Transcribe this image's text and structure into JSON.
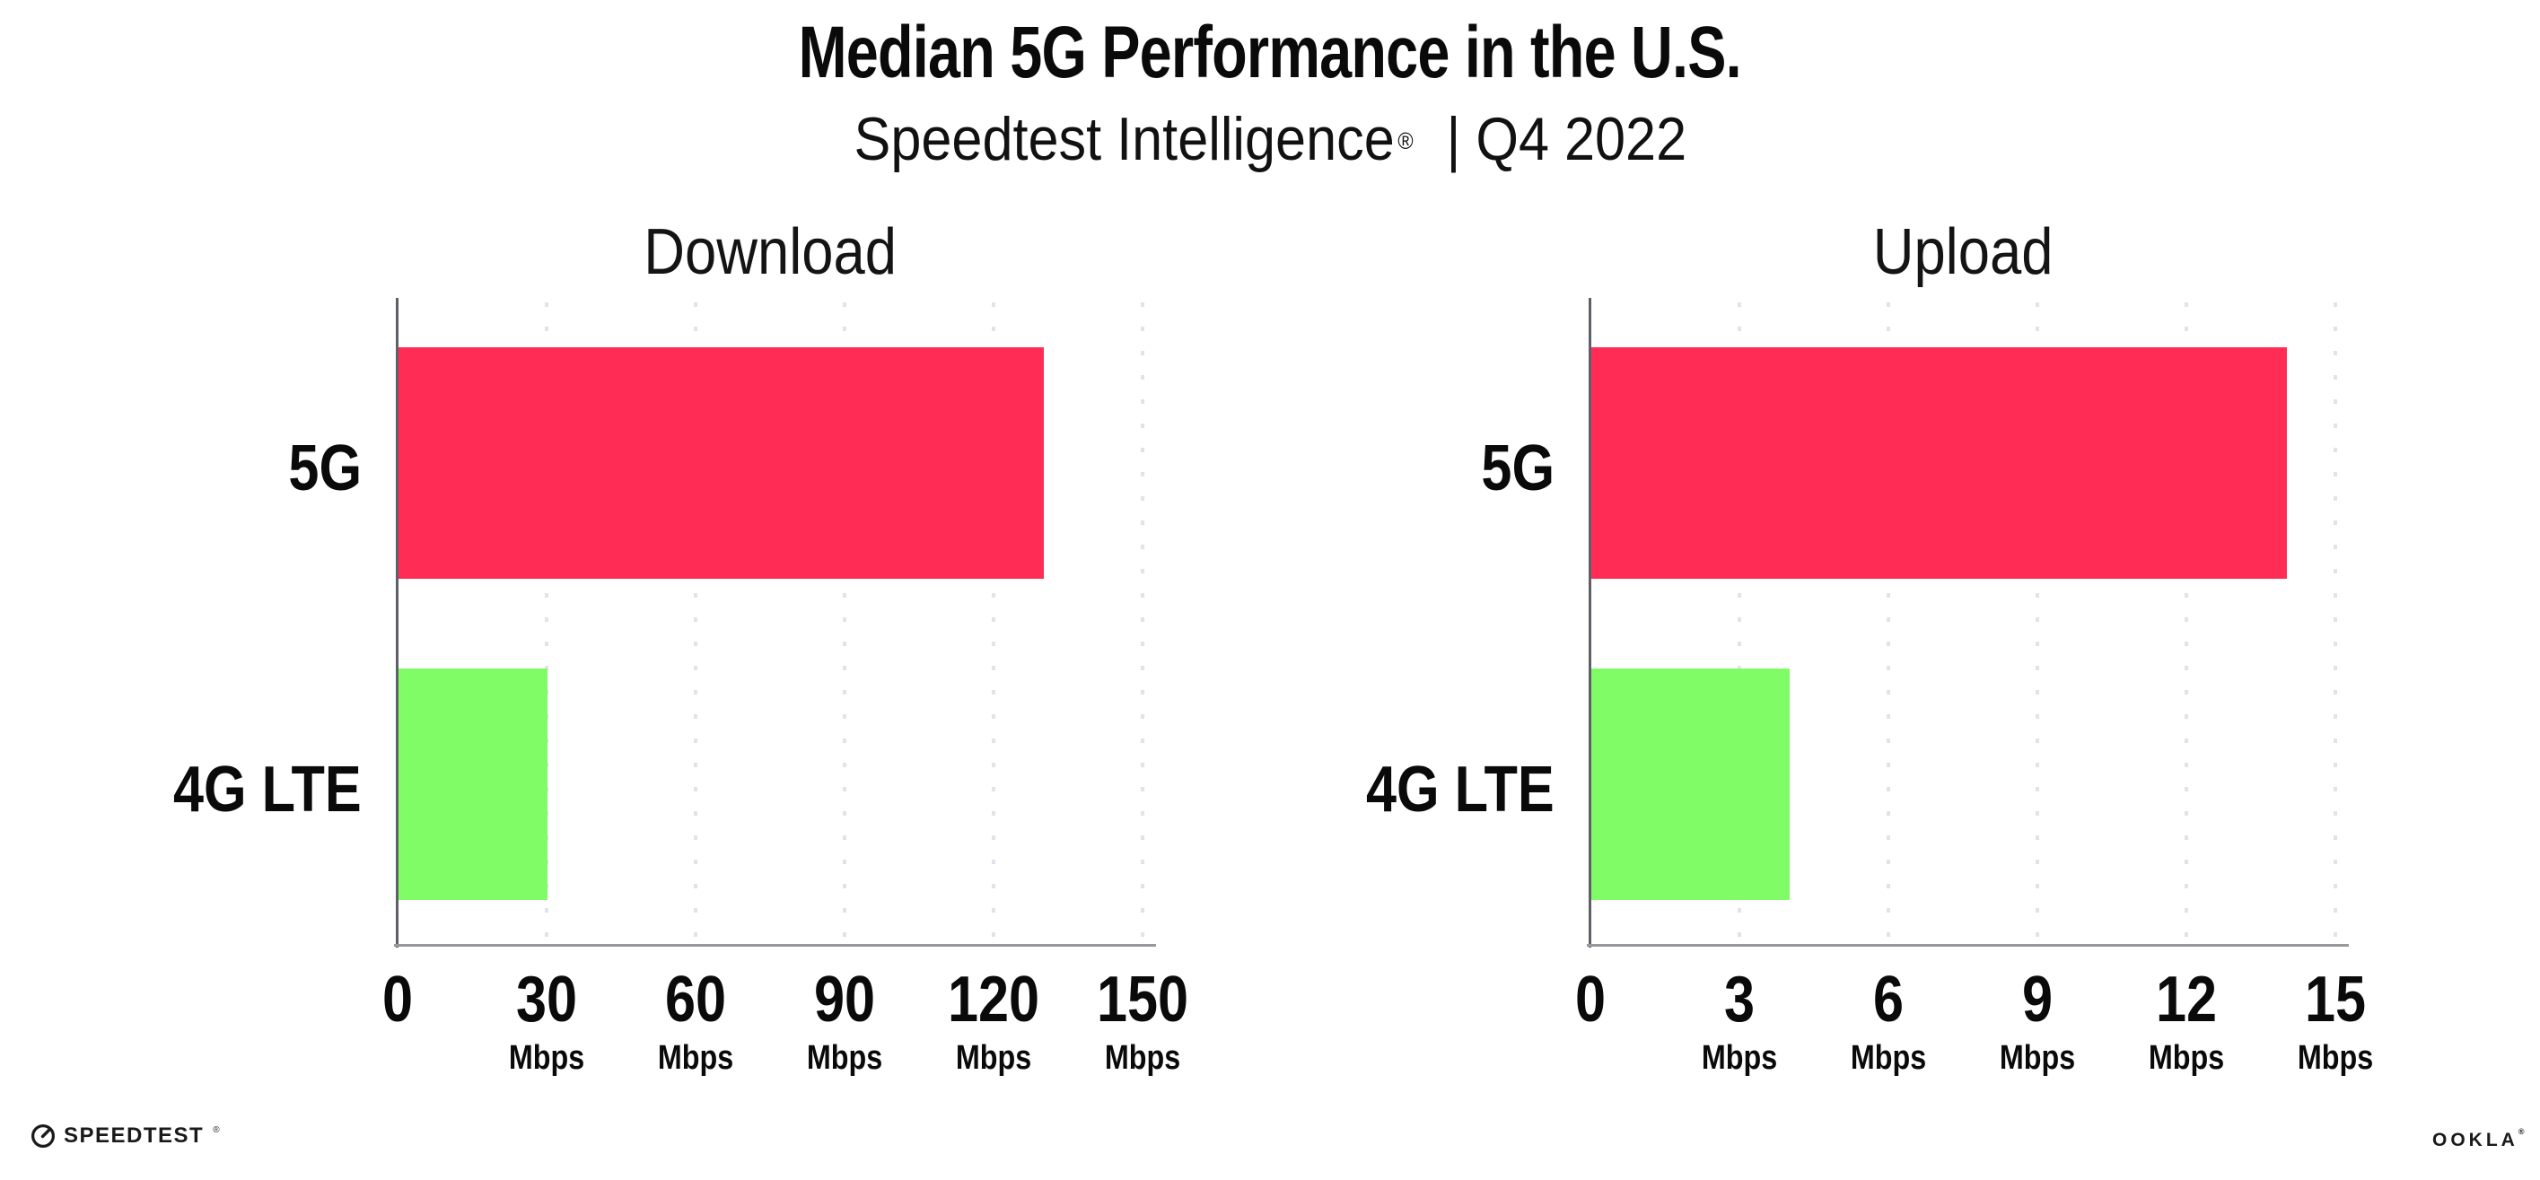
{
  "header": {
    "title": "Median 5G Performance in the U.S.",
    "subtitle_brand": "Speedtest Intelligence",
    "subtitle_reg": "®",
    "subtitle_rest": "| Q4 2022"
  },
  "chart_data": [
    {
      "type": "bar",
      "orientation": "horizontal",
      "title": "Download",
      "categories": [
        "5G",
        "4G LTE"
      ],
      "values": [
        130,
        30
      ],
      "unit": "Mbps",
      "xlim": [
        0,
        150
      ],
      "tick_values": [
        0,
        30,
        60,
        90,
        120,
        150
      ],
      "tick_labels": [
        "0",
        "30",
        "60",
        "90",
        "120",
        "150"
      ],
      "bar_colors": [
        "#FF2D55",
        "#80FC66"
      ],
      "grid": "dotted vertical gridlines every 30 Mbps",
      "legend": "none",
      "data_labels": "none"
    },
    {
      "type": "bar",
      "orientation": "horizontal",
      "title": "Upload",
      "categories": [
        "5G",
        "4G LTE"
      ],
      "values": [
        14,
        4
      ],
      "unit": "Mbps",
      "xlim": [
        0,
        15
      ],
      "tick_values": [
        0,
        3,
        6,
        9,
        12,
        15
      ],
      "tick_labels": [
        "0",
        "3",
        "6",
        "9",
        "12",
        "15"
      ],
      "bar_colors": [
        "#FF2D55",
        "#80FC66"
      ],
      "grid": "dotted vertical gridlines every 3 Mbps",
      "legend": "none",
      "data_labels": "none"
    }
  ],
  "footer": {
    "speedtest_label": "SPEEDTEST",
    "speedtest_reg": "®",
    "ookla_label": "OOKLA",
    "ookla_reg": "®"
  },
  "colors": {
    "bar_5g": "#FF2D55",
    "bar_4g_lte": "#80FC66",
    "axis_y": "#5F5F68",
    "axis_x": "#98989D",
    "gridline": "#E2E2EC",
    "text": "#0A0A0A",
    "background": "#FFFFFF"
  }
}
